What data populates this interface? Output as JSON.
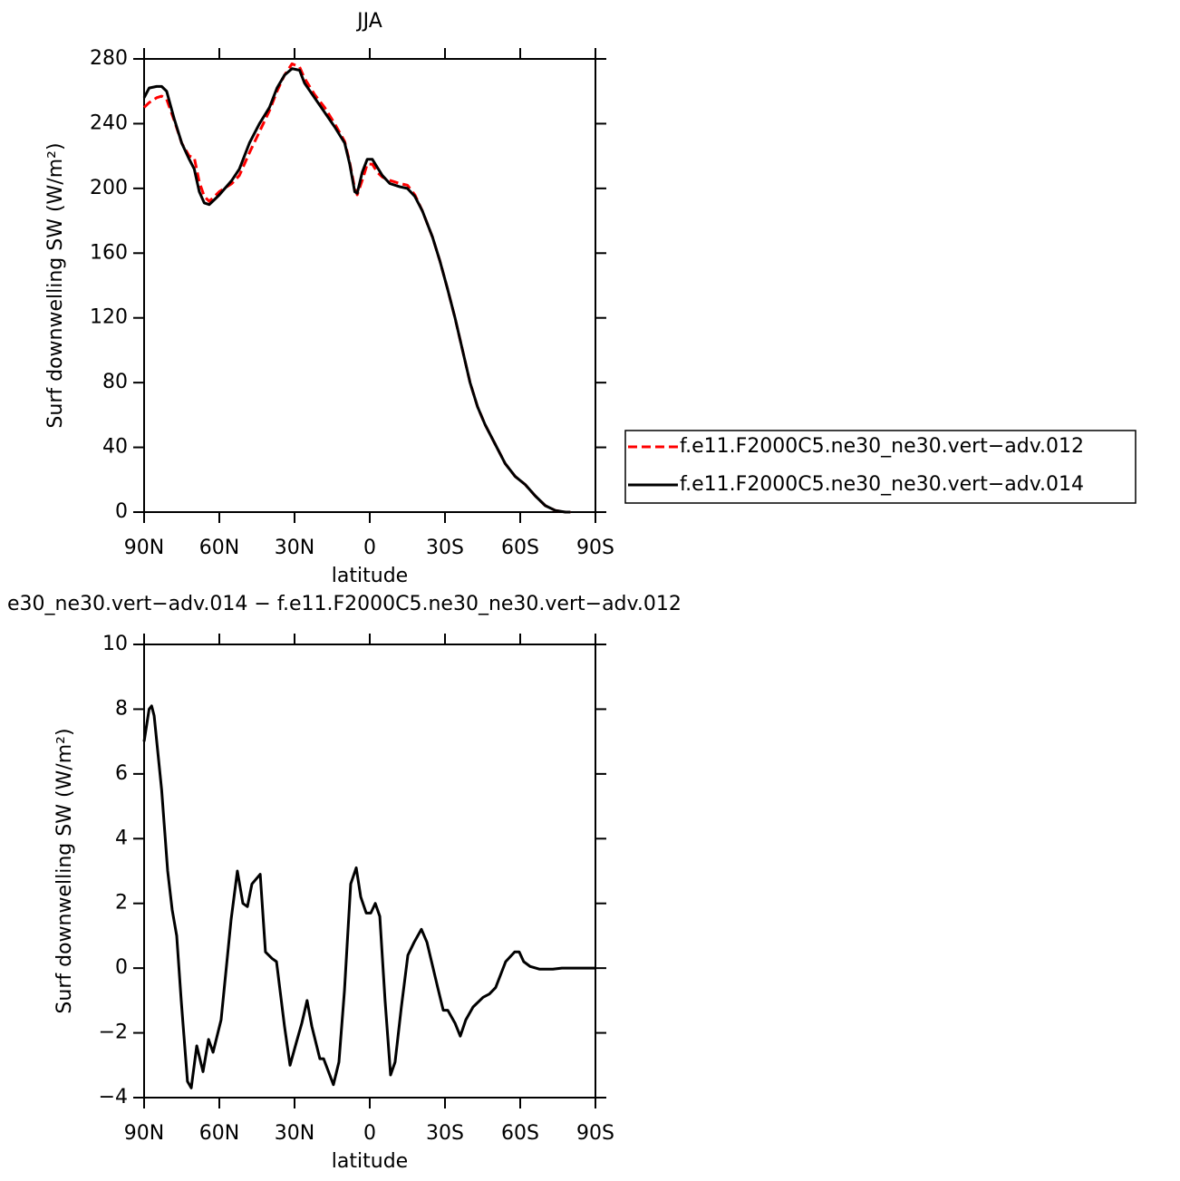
{
  "chart_data": [
    {
      "type": "line",
      "title": "JJA",
      "xlabel": "latitude",
      "ylabel": "Surf downwelling SW (W/m²)",
      "xlim": [
        90,
        -90
      ],
      "xticks": [
        {
          "value": 90,
          "label": "90N"
        },
        {
          "value": 60,
          "label": "60N"
        },
        {
          "value": 30,
          "label": "30N"
        },
        0,
        {
          "value": -30,
          "label": "30S"
        },
        {
          "value": -60,
          "label": "60S"
        },
        {
          "value": -90,
          "label": "90S"
        }
      ],
      "ylim": [
        0,
        280
      ],
      "yticks": [
        0,
        40,
        80,
        120,
        160,
        200,
        240,
        280
      ],
      "legend": "outside-right",
      "x": [
        90,
        88,
        85,
        83,
        81,
        78,
        75,
        72,
        70,
        68,
        66,
        64,
        62,
        60,
        55,
        52,
        48,
        44,
        40,
        37,
        34,
        31,
        28,
        26,
        22,
        18,
        14,
        10,
        8,
        6,
        5,
        3,
        1,
        -1,
        -3,
        -5,
        -8,
        -12,
        -15,
        -18,
        -21,
        -25,
        -28,
        -31,
        -34,
        -37,
        -40,
        -43,
        -46,
        -50,
        -54,
        -58,
        -62,
        -66,
        -70,
        -74,
        -78,
        -80
      ],
      "series": [
        {
          "name": "f.e11.F2000C5.ne30_ne30.vert−adv.012",
          "color": "#ff0000",
          "linestyle": "dashed",
          "values": [
            250,
            253,
            256,
            257,
            255,
            242,
            228,
            220,
            219,
            204,
            195,
            192,
            195,
            198,
            203,
            208,
            222,
            235,
            248,
            260,
            270,
            277,
            275,
            268,
            258,
            250,
            240,
            229,
            216,
            200,
            196,
            205,
            215,
            215,
            210,
            207,
            205,
            203,
            202,
            196,
            186,
            170,
            155,
            138,
            120,
            100,
            80,
            65,
            54,
            42,
            30,
            22,
            17,
            10,
            4,
            1,
            0,
            0
          ]
        },
        {
          "name": "f.e11.F2000C5.ne30_ne30.vert−adv.014",
          "color": "#000000",
          "linestyle": "solid",
          "values": [
            256,
            262,
            263,
            263,
            260,
            243,
            228,
            218,
            212,
            198,
            191,
            190,
            193,
            196,
            205,
            212,
            228,
            240,
            250,
            262,
            270,
            274,
            273,
            265,
            256,
            247,
            238,
            228,
            215,
            198,
            197,
            210,
            218,
            218,
            213,
            208,
            203,
            201,
            200,
            195,
            186,
            170,
            155,
            138,
            120,
            100,
            80,
            65,
            54,
            42,
            30,
            22,
            17,
            10,
            4,
            1,
            0,
            0
          ]
        }
      ]
    },
    {
      "type": "line",
      "title": "e30_ne30.vert−adv.014 − f.e11.F2000C5.ne30_ne30.vert−adv.012",
      "xlabel": "latitude",
      "ylabel": "Surf downwelling SW (W/m²)",
      "xlim": [
        90,
        -90
      ],
      "xticks": [
        {
          "value": 90,
          "label": "90N"
        },
        {
          "value": 60,
          "label": "60N"
        },
        {
          "value": 30,
          "label": "30N"
        },
        0,
        {
          "value": -30,
          "label": "30S"
        },
        {
          "value": -60,
          "label": "60S"
        },
        {
          "value": -90,
          "label": "90S"
        }
      ],
      "ylim": [
        -4,
        10
      ],
      "yticks": [
        {
          "value": -4,
          "label": "−4"
        },
        {
          "value": -2,
          "label": "−2"
        },
        0,
        2,
        4,
        6,
        8,
        10
      ],
      "x": [
        90,
        88,
        87,
        86,
        83,
        80.6,
        78.8,
        77,
        75.2,
        72.7,
        71.2,
        69,
        66.5,
        64.3,
        62.5,
        59.3,
        55.3,
        52.8,
        50.6,
        48.8,
        47,
        43.7,
        41.6,
        39,
        37.2,
        34,
        31.8,
        29.3,
        27.1,
        25,
        23.1,
        19.9,
        18.4,
        14.5,
        12.3,
        10.1,
        7.6,
        5.4,
        3.6,
        1.4,
        -0.4,
        -2.2,
        -4,
        -6.1,
        -8.3,
        -10.1,
        -12.6,
        -15.2,
        -17.7,
        -20.6,
        -22.8,
        -27.1,
        -29.3,
        -31.1,
        -34,
        -36.1,
        -38.3,
        -41.2,
        -45.2,
        -47.7,
        -50.2,
        -54.2,
        -57.8,
        -59.6,
        -61.4,
        -64,
        -67.6,
        -73,
        -76.6,
        -90
      ],
      "color": "#000000",
      "values": [
        7.0,
        8.0,
        8.1,
        7.8,
        5.5,
        3.0,
        1.8,
        1.0,
        -1,
        -3.5,
        -3.7,
        -2.4,
        -3.2,
        -2.2,
        -2.6,
        -1.6,
        1.5,
        3.0,
        2.0,
        1.9,
        2.6,
        2.9,
        0.5,
        0.3,
        0.2,
        -1.8,
        -3.0,
        -2.3,
        -1.7,
        -1.0,
        -1.8,
        -2.8,
        -2.8,
        -3.6,
        -2.9,
        -0.7,
        2.6,
        3.1,
        2.2,
        1.7,
        1.7,
        2.0,
        1.6,
        -1.0,
        -3.3,
        -2.9,
        -1.2,
        0.4,
        0.8,
        1.2,
        0.8,
        -0.6,
        -1.3,
        -1.3,
        -1.7,
        -2.1,
        -1.6,
        -1.2,
        -0.9,
        -0.8,
        -0.6,
        0.2,
        0.5,
        0.5,
        0.2,
        0.05,
        -0.03,
        -0.03,
        0,
        0
      ]
    }
  ]
}
